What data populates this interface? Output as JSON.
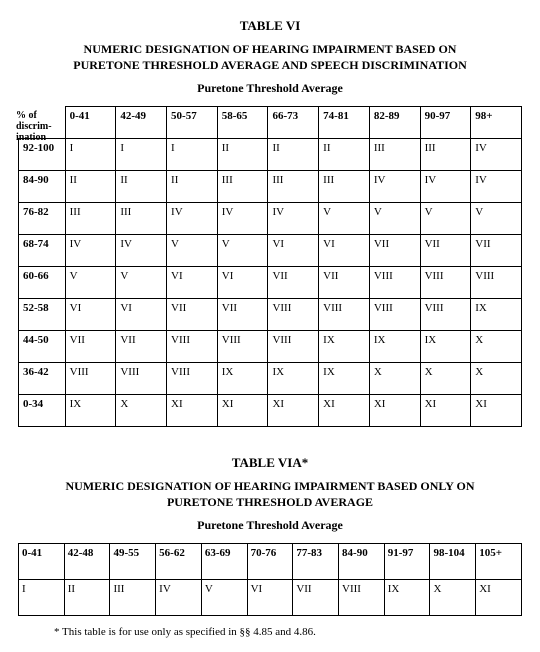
{
  "table6": {
    "label": "TABLE VI",
    "title_line1": "NUMERIC DESIGNATION OF HEARING IMPAIRMENT BASED ON",
    "title_line2": "PURETONE THRESHOLD AVERAGE AND SPEECH DISCRIMINATION",
    "axis_label": "Puretone Threshold Average",
    "disc_label_l1": "% of",
    "disc_label_l2": "discrim-",
    "disc_label_l3": "ination",
    "col_headers": [
      "0-41",
      "42-49",
      "50-57",
      "58-65",
      "66-73",
      "74-81",
      "82-89",
      "90-97",
      "98+"
    ],
    "rows": [
      {
        "h": "92-100",
        "c": [
          "I",
          "I",
          "I",
          "II",
          "II",
          "II",
          "III",
          "III",
          "IV"
        ]
      },
      {
        "h": "84-90",
        "c": [
          "II",
          "II",
          "II",
          "III",
          "III",
          "III",
          "IV",
          "IV",
          "IV"
        ]
      },
      {
        "h": "76-82",
        "c": [
          "III",
          "III",
          "IV",
          "IV",
          "IV",
          "V",
          "V",
          "V",
          "V"
        ]
      },
      {
        "h": "68-74",
        "c": [
          "IV",
          "IV",
          "V",
          "V",
          "VI",
          "VI",
          "VII",
          "VII",
          "VII"
        ]
      },
      {
        "h": "60-66",
        "c": [
          "V",
          "V",
          "VI",
          "VI",
          "VII",
          "VII",
          "VIII",
          "VIII",
          "VIII"
        ]
      },
      {
        "h": "52-58",
        "c": [
          "VI",
          "VI",
          "VII",
          "VII",
          "VIII",
          "VIII",
          "VIII",
          "VIII",
          "IX"
        ]
      },
      {
        "h": "44-50",
        "c": [
          "VII",
          "VII",
          "VIII",
          "VIII",
          "VIII",
          "IX",
          "IX",
          "IX",
          "X"
        ]
      },
      {
        "h": "36-42",
        "c": [
          "VIII",
          "VIII",
          "VIII",
          "IX",
          "IX",
          "IX",
          "X",
          "X",
          "X"
        ]
      },
      {
        "h": "0-34",
        "c": [
          "IX",
          "X",
          "XI",
          "XI",
          "XI",
          "XI",
          "XI",
          "XI",
          "XI"
        ]
      }
    ]
  },
  "table6a": {
    "label": "TABLE VIA*",
    "title_line1": "NUMERIC DESIGNATION OF HEARING IMPAIRMENT BASED ONLY ON",
    "title_line2": "PURETONE THRESHOLD AVERAGE",
    "axis_label": "Puretone Threshold Average",
    "col_headers": [
      "0-41",
      "42-48",
      "49-55",
      "56-62",
      "63-69",
      "70-76",
      "77-83",
      "84-90",
      "91-97",
      "98-104",
      "105+"
    ],
    "row": [
      "I",
      "II",
      "III",
      "IV",
      "V",
      "VI",
      "VII",
      "VIII",
      "IX",
      "X",
      "XI"
    ],
    "footnote": "* This table is for use only as specified in §§ 4.85 and 4.86."
  }
}
